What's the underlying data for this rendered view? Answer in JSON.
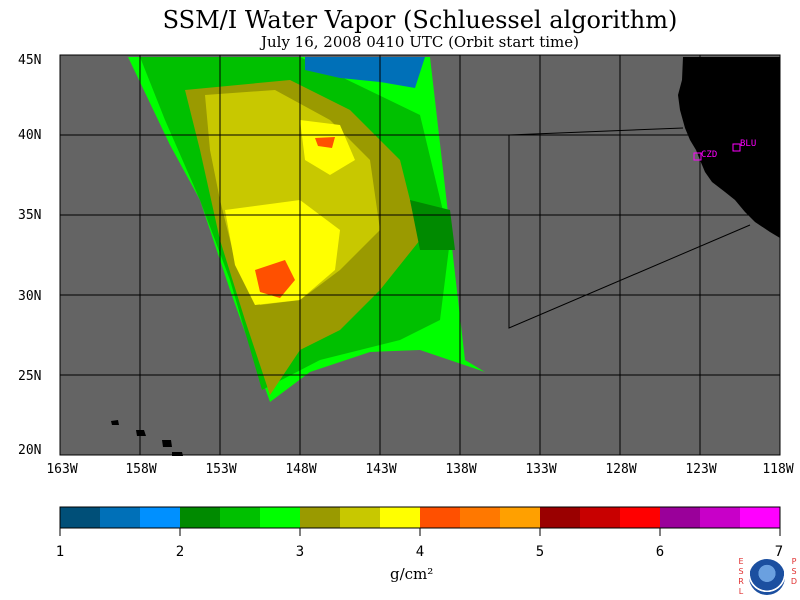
{
  "title": "SSM/I Water Vapor (Schluessel algorithm)",
  "subtitle": "July 16, 2008  0410 UTC  (Orbit start time)",
  "map": {
    "lat_labels": [
      "45N",
      "40N",
      "35N",
      "30N",
      "25N",
      "20N"
    ],
    "lon_labels": [
      "163W",
      "158W",
      "153W",
      "148W",
      "143W",
      "138W",
      "133W",
      "128W",
      "123W",
      "118W"
    ],
    "lat_range": [
      20,
      45
    ],
    "lon_range": [
      -163,
      -118
    ],
    "stations": [
      {
        "label": "CZD",
        "color": "#ff00ff"
      },
      {
        "label": "BLU",
        "color": "#ff00ff"
      }
    ],
    "colors": {
      "background": "#646464",
      "land": "#000000",
      "grid": "#000000"
    }
  },
  "colorbar": {
    "tick_labels": [
      "1",
      "2",
      "3",
      "4",
      "5",
      "6",
      "7"
    ],
    "units": "g/cm²",
    "range": [
      1,
      7
    ],
    "colors": [
      "#004f78",
      "#0070b8",
      "#0090ff",
      "#008a00",
      "#00c000",
      "#00ff00",
      "#9a9a00",
      "#c8c800",
      "#ffff00",
      "#ff5000",
      "#ff7800",
      "#ffa000",
      "#9a0000",
      "#c80000",
      "#ff0000",
      "#9a009a",
      "#c800c8",
      "#ff00ff"
    ]
  },
  "logo": {
    "left_letters": "ESRL",
    "right_letters": "PSD",
    "icon": "noaa-logo-icon"
  }
}
